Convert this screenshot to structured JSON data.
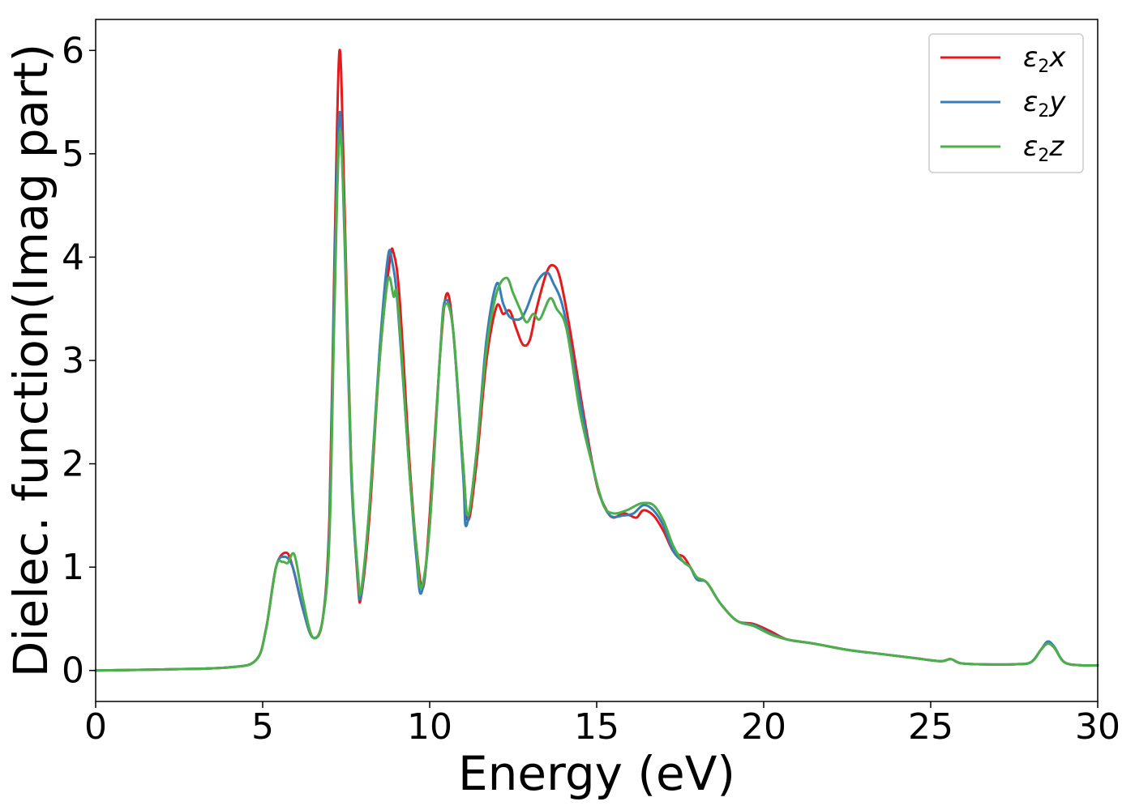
{
  "chart_data": {
    "type": "line",
    "xlabel": "Energy (eV)",
    "ylabel": "Dielec. function(Imag part)",
    "xlim": [
      0,
      30
    ],
    "ylim": [
      -0.3,
      6.3
    ],
    "xticks": [
      0,
      5,
      10,
      15,
      20,
      25,
      30
    ],
    "yticks": [
      0,
      1,
      2,
      3,
      4,
      5,
      6
    ],
    "grid": false,
    "legend_position": "top-right",
    "series": [
      {
        "name": "ε2x",
        "legend": {
          "symbol": "ε",
          "sub": "2",
          "var": "x"
        },
        "color": "#e41a1c",
        "points": [
          [
            0,
            0
          ],
          [
            2,
            0.01
          ],
          [
            4,
            0.03
          ],
          [
            4.8,
            0.1
          ],
          [
            5.1,
            0.4
          ],
          [
            5.4,
            1.0
          ],
          [
            5.7,
            1.14
          ],
          [
            5.9,
            1.0
          ],
          [
            6.2,
            0.6
          ],
          [
            6.5,
            0.32
          ],
          [
            6.8,
            0.5
          ],
          [
            7.0,
            1.5
          ],
          [
            7.15,
            4.0
          ],
          [
            7.3,
            6.0
          ],
          [
            7.45,
            4.5
          ],
          [
            7.65,
            2.0
          ],
          [
            7.85,
            0.85
          ],
          [
            7.95,
            0.72
          ],
          [
            8.2,
            1.5
          ],
          [
            8.5,
            3.0
          ],
          [
            8.8,
            3.95
          ],
          [
            8.92,
            4.04
          ],
          [
            9.1,
            3.6
          ],
          [
            9.4,
            2.0
          ],
          [
            9.6,
            1.2
          ],
          [
            9.8,
            0.8
          ],
          [
            10.0,
            1.5
          ],
          [
            10.3,
            3.0
          ],
          [
            10.5,
            3.64
          ],
          [
            10.7,
            3.3
          ],
          [
            11.0,
            2.0
          ],
          [
            11.15,
            1.45
          ],
          [
            11.4,
            2.0
          ],
          [
            11.7,
            3.0
          ],
          [
            12.0,
            3.52
          ],
          [
            12.2,
            3.45
          ],
          [
            12.4,
            3.48
          ],
          [
            12.6,
            3.3
          ],
          [
            12.8,
            3.15
          ],
          [
            13.0,
            3.2
          ],
          [
            13.2,
            3.5
          ],
          [
            13.5,
            3.85
          ],
          [
            13.7,
            3.92
          ],
          [
            13.9,
            3.8
          ],
          [
            14.2,
            3.3
          ],
          [
            14.6,
            2.5
          ],
          [
            15.0,
            1.8
          ],
          [
            15.3,
            1.55
          ],
          [
            15.5,
            1.48
          ],
          [
            15.8,
            1.52
          ],
          [
            16.0,
            1.5
          ],
          [
            16.2,
            1.48
          ],
          [
            16.4,
            1.55
          ],
          [
            16.7,
            1.5
          ],
          [
            17.0,
            1.35
          ],
          [
            17.3,
            1.15
          ],
          [
            17.6,
            1.1
          ],
          [
            17.8,
            1.0
          ],
          [
            18.0,
            0.9
          ],
          [
            18.3,
            0.85
          ],
          [
            18.7,
            0.65
          ],
          [
            19.2,
            0.48
          ],
          [
            19.7,
            0.45
          ],
          [
            20.2,
            0.38
          ],
          [
            20.7,
            0.3
          ],
          [
            21.5,
            0.26
          ],
          [
            22.5,
            0.2
          ],
          [
            23.5,
            0.16
          ],
          [
            24.5,
            0.12
          ],
          [
            25.3,
            0.09
          ],
          [
            25.6,
            0.11
          ],
          [
            25.9,
            0.07
          ],
          [
            26.5,
            0.06
          ],
          [
            27.5,
            0.06
          ],
          [
            28.0,
            0.08
          ],
          [
            28.3,
            0.2
          ],
          [
            28.5,
            0.26
          ],
          [
            28.7,
            0.22
          ],
          [
            29.0,
            0.08
          ],
          [
            29.5,
            0.05
          ],
          [
            30,
            0.05
          ]
        ]
      },
      {
        "name": "ε2y",
        "legend": {
          "symbol": "ε",
          "sub": "2",
          "var": "y"
        },
        "color": "#377eb8",
        "points": [
          [
            0,
            0
          ],
          [
            2,
            0.01
          ],
          [
            4,
            0.03
          ],
          [
            4.8,
            0.1
          ],
          [
            5.1,
            0.4
          ],
          [
            5.4,
            1.0
          ],
          [
            5.65,
            1.1
          ],
          [
            5.9,
            1.0
          ],
          [
            6.2,
            0.6
          ],
          [
            6.5,
            0.32
          ],
          [
            6.8,
            0.5
          ],
          [
            7.0,
            1.4
          ],
          [
            7.15,
            3.8
          ],
          [
            7.3,
            5.4
          ],
          [
            7.45,
            4.2
          ],
          [
            7.65,
            1.9
          ],
          [
            7.85,
            0.9
          ],
          [
            7.95,
            0.74
          ],
          [
            8.2,
            1.6
          ],
          [
            8.5,
            3.1
          ],
          [
            8.75,
            4.0
          ],
          [
            8.88,
            3.95
          ],
          [
            9.05,
            3.5
          ],
          [
            9.4,
            1.9
          ],
          [
            9.6,
            1.1
          ],
          [
            9.75,
            0.75
          ],
          [
            10.0,
            1.4
          ],
          [
            10.3,
            3.0
          ],
          [
            10.45,
            3.57
          ],
          [
            10.7,
            3.3
          ],
          [
            11.0,
            1.9
          ],
          [
            11.1,
            1.4
          ],
          [
            11.4,
            2.1
          ],
          [
            11.7,
            3.2
          ],
          [
            12.0,
            3.74
          ],
          [
            12.2,
            3.55
          ],
          [
            12.4,
            3.42
          ],
          [
            12.7,
            3.4
          ],
          [
            12.9,
            3.5
          ],
          [
            13.2,
            3.75
          ],
          [
            13.5,
            3.85
          ],
          [
            13.7,
            3.75
          ],
          [
            14.0,
            3.5
          ],
          [
            14.4,
            2.8
          ],
          [
            14.8,
            2.1
          ],
          [
            15.1,
            1.7
          ],
          [
            15.4,
            1.5
          ],
          [
            15.8,
            1.5
          ],
          [
            16.1,
            1.52
          ],
          [
            16.4,
            1.6
          ],
          [
            16.7,
            1.55
          ],
          [
            17.0,
            1.4
          ],
          [
            17.3,
            1.15
          ],
          [
            17.6,
            1.05
          ],
          [
            17.8,
            1.0
          ],
          [
            18.0,
            0.88
          ],
          [
            18.3,
            0.85
          ],
          [
            18.7,
            0.65
          ],
          [
            19.2,
            0.48
          ],
          [
            19.7,
            0.44
          ],
          [
            20.2,
            0.36
          ],
          [
            20.7,
            0.3
          ],
          [
            21.5,
            0.26
          ],
          [
            22.5,
            0.2
          ],
          [
            23.5,
            0.16
          ],
          [
            24.5,
            0.12
          ],
          [
            25.3,
            0.09
          ],
          [
            25.6,
            0.11
          ],
          [
            25.9,
            0.07
          ],
          [
            26.5,
            0.06
          ],
          [
            27.5,
            0.06
          ],
          [
            28.0,
            0.08
          ],
          [
            28.3,
            0.2
          ],
          [
            28.5,
            0.28
          ],
          [
            28.7,
            0.23
          ],
          [
            29.0,
            0.08
          ],
          [
            29.5,
            0.05
          ],
          [
            30,
            0.05
          ]
        ]
      },
      {
        "name": "ε2z",
        "legend": {
          "symbol": "ε",
          "sub": "2",
          "var": "z"
        },
        "color": "#4daf4a",
        "points": [
          [
            0,
            0
          ],
          [
            2,
            0.01
          ],
          [
            4,
            0.03
          ],
          [
            4.8,
            0.1
          ],
          [
            5.1,
            0.4
          ],
          [
            5.4,
            1.0
          ],
          [
            5.6,
            1.05
          ],
          [
            5.75,
            1.04
          ],
          [
            5.95,
            1.12
          ],
          [
            6.2,
            0.7
          ],
          [
            6.5,
            0.32
          ],
          [
            6.8,
            0.5
          ],
          [
            7.0,
            1.3
          ],
          [
            7.15,
            3.5
          ],
          [
            7.3,
            5.2
          ],
          [
            7.45,
            4.3
          ],
          [
            7.65,
            2.0
          ],
          [
            7.85,
            0.95
          ],
          [
            7.95,
            0.78
          ],
          [
            8.2,
            1.6
          ],
          [
            8.5,
            3.0
          ],
          [
            8.75,
            3.78
          ],
          [
            8.92,
            3.62
          ],
          [
            9.05,
            3.55
          ],
          [
            9.4,
            1.9
          ],
          [
            9.6,
            1.2
          ],
          [
            9.75,
            0.8
          ],
          [
            10.0,
            1.4
          ],
          [
            10.3,
            3.0
          ],
          [
            10.45,
            3.53
          ],
          [
            10.7,
            3.3
          ],
          [
            11.0,
            2.0
          ],
          [
            11.15,
            1.5
          ],
          [
            11.4,
            2.1
          ],
          [
            11.7,
            3.1
          ],
          [
            12.0,
            3.65
          ],
          [
            12.3,
            3.8
          ],
          [
            12.5,
            3.65
          ],
          [
            12.7,
            3.5
          ],
          [
            12.9,
            3.37
          ],
          [
            13.1,
            3.45
          ],
          [
            13.3,
            3.4
          ],
          [
            13.6,
            3.6
          ],
          [
            13.8,
            3.5
          ],
          [
            14.1,
            3.3
          ],
          [
            14.5,
            2.5
          ],
          [
            14.9,
            1.95
          ],
          [
            15.2,
            1.6
          ],
          [
            15.5,
            1.52
          ],
          [
            15.9,
            1.55
          ],
          [
            16.2,
            1.6
          ],
          [
            16.4,
            1.62
          ],
          [
            16.7,
            1.6
          ],
          [
            17.0,
            1.45
          ],
          [
            17.3,
            1.2
          ],
          [
            17.6,
            1.05
          ],
          [
            17.8,
            1.0
          ],
          [
            18.0,
            0.9
          ],
          [
            18.3,
            0.85
          ],
          [
            18.7,
            0.65
          ],
          [
            19.2,
            0.48
          ],
          [
            19.7,
            0.43
          ],
          [
            20.2,
            0.35
          ],
          [
            20.7,
            0.3
          ],
          [
            21.5,
            0.26
          ],
          [
            22.5,
            0.2
          ],
          [
            23.5,
            0.16
          ],
          [
            24.5,
            0.12
          ],
          [
            25.3,
            0.09
          ],
          [
            25.6,
            0.11
          ],
          [
            25.9,
            0.07
          ],
          [
            26.5,
            0.06
          ],
          [
            27.5,
            0.06
          ],
          [
            28.0,
            0.08
          ],
          [
            28.3,
            0.2
          ],
          [
            28.5,
            0.26
          ],
          [
            28.7,
            0.22
          ],
          [
            29.0,
            0.08
          ],
          [
            29.5,
            0.05
          ],
          [
            30,
            0.05
          ]
        ]
      }
    ]
  }
}
